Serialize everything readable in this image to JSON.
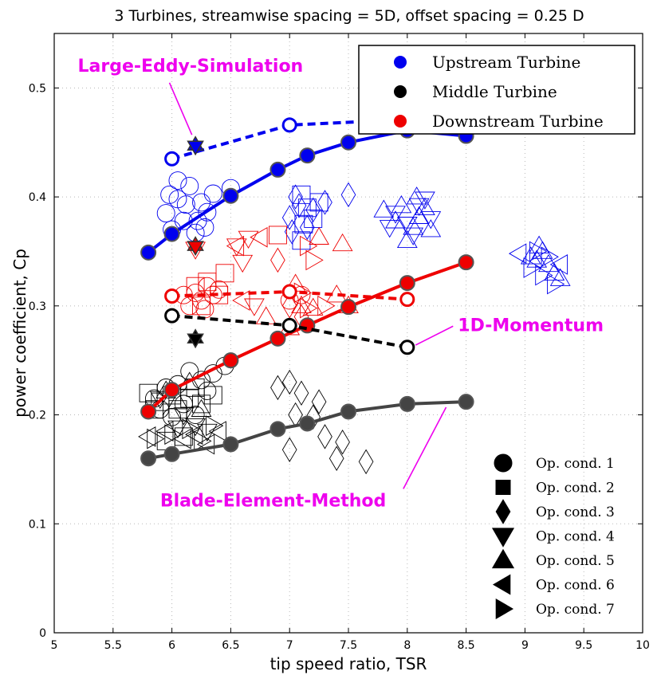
{
  "chart_data": {
    "type": "scatter",
    "title": "3 Turbines, streamwise spacing = 5D, offset spacing = 0.25 D",
    "xlabel": "tip speed ratio, TSR",
    "ylabel": "power coefficient, Cp",
    "xlim": [
      5,
      10
    ],
    "ylim": [
      0,
      0.55
    ],
    "xticks": [
      5,
      5.5,
      6,
      6.5,
      7,
      7.5,
      8,
      8.5,
      9,
      9.5,
      10
    ],
    "xtick_labels": [
      "5",
      "5.5",
      "6",
      "6.5",
      "7",
      "7.5",
      "8",
      "8.5",
      "9",
      "9.5",
      "10"
    ],
    "yticks": [
      0,
      0.1,
      0.2,
      0.3,
      0.4,
      0.5
    ],
    "ytick_labels": [
      "0",
      "0.1",
      "0.2",
      "0.3",
      "0.4",
      "0.5"
    ],
    "grid": true,
    "legend_placement": "top-right",
    "legend": [
      {
        "name": "Upstream Turbine",
        "color": "#0000ee"
      },
      {
        "name": "Middle Turbine",
        "color": "#000000"
      },
      {
        "name": "Downstream Turbine",
        "color": "#ee0000"
      }
    ],
    "op_conditions": [
      {
        "label": "Op. cond. 1",
        "marker": "circle"
      },
      {
        "label": "Op. cond. 2",
        "marker": "square"
      },
      {
        "label": "Op. cond. 3",
        "marker": "diamond"
      },
      {
        "label": "Op. cond. 4",
        "marker": "triangle-down"
      },
      {
        "label": "Op. cond. 5",
        "marker": "triangle-up"
      },
      {
        "label": "Op. cond. 6",
        "marker": "triangle-left"
      },
      {
        "label": "Op. cond. 7",
        "marker": "triangle-right"
      }
    ],
    "annotations": [
      {
        "text": "Large-Eddy-Simulation",
        "x": 5.2,
        "y": 0.515,
        "arrow_to": [
          6.17,
          0.457
        ]
      },
      {
        "text": "1D-Momentum",
        "x": 8.43,
        "y": 0.277,
        "arrow_to": [
          8.07,
          0.264
        ]
      },
      {
        "text": "Blade-Element-Method",
        "x": 5.9,
        "y": 0.116,
        "arrow_to": [
          8.33,
          0.207
        ]
      }
    ],
    "series": [
      {
        "name": "Upstream BEM",
        "color": "#0000ee",
        "line": "solid",
        "marker": "circle-filled",
        "x": [
          5.8,
          6,
          6.5,
          6.9,
          7.15,
          7.5,
          8,
          8.5
        ],
        "y": [
          0.349,
          0.366,
          0.401,
          0.425,
          0.438,
          0.45,
          0.461,
          0.456
        ]
      },
      {
        "name": "Downstream BEM",
        "color": "#ee0000",
        "line": "solid",
        "marker": "circle-filled",
        "x": [
          5.8,
          6,
          6.5,
          6.9,
          7.15,
          7.5,
          8,
          8.5
        ],
        "y": [
          0.203,
          0.223,
          0.25,
          0.27,
          0.282,
          0.299,
          0.321,
          0.34
        ]
      },
      {
        "name": "Middle BEM",
        "color": "#444444",
        "line": "solid",
        "marker": "circle-filled",
        "x": [
          5.8,
          6,
          6.5,
          6.9,
          7.15,
          7.5,
          8,
          8.5
        ],
        "y": [
          0.16,
          0.164,
          0.173,
          0.187,
          0.192,
          0.203,
          0.21,
          0.212
        ]
      },
      {
        "name": "Upstream 1D-Momentum",
        "color": "#0000ee",
        "line": "dashed",
        "marker": "circle-open",
        "x": [
          6,
          7,
          8
        ],
        "y": [
          0.435,
          0.466,
          0.471
        ]
      },
      {
        "name": "Downstream 1D-Momentum",
        "color": "#ee0000",
        "line": "dashed",
        "marker": "circle-open",
        "x": [
          6,
          7,
          8
        ],
        "y": [
          0.309,
          0.313,
          0.306
        ]
      },
      {
        "name": "Middle 1D-Momentum",
        "color": "#000000",
        "line": "dashed",
        "marker": "circle-open",
        "x": [
          6,
          7,
          8
        ],
        "y": [
          0.291,
          0.282,
          0.262
        ]
      },
      {
        "name": "Upstream LES",
        "color": "#0000ee",
        "line": "none",
        "marker": "hexagram",
        "x": [
          6.2
        ],
        "y": [
          0.447
        ]
      },
      {
        "name": "Downstream LES",
        "color": "#ee0000",
        "line": "none",
        "marker": "hexagram",
        "x": [
          6.2
        ],
        "y": [
          0.355
        ]
      },
      {
        "name": "Middle LES",
        "color": "#000000",
        "line": "none",
        "marker": "hexagram",
        "x": [
          6.2
        ],
        "y": [
          0.27
        ]
      }
    ],
    "experiments": [
      {
        "color": "#0000ee",
        "points": [
          [
            5.95,
            0.385,
            "circle"
          ],
          [
            6.05,
            0.398,
            "circle"
          ],
          [
            6.15,
            0.41,
            "circle"
          ],
          [
            6.0,
            0.37,
            "circle"
          ],
          [
            6.25,
            0.395,
            "circle"
          ],
          [
            6.1,
            0.378,
            "circle"
          ],
          [
            6.3,
            0.386,
            "circle"
          ],
          [
            6.2,
            0.367,
            "circle"
          ],
          [
            6.35,
            0.403,
            "circle"
          ],
          [
            6.05,
            0.415,
            "circle"
          ],
          [
            6.22,
            0.378,
            "circle"
          ],
          [
            5.98,
            0.402,
            "circle"
          ],
          [
            6.5,
            0.408,
            "circle"
          ],
          [
            6.28,
            0.372,
            "circle"
          ],
          [
            6.12,
            0.393,
            "circle"
          ],
          [
            7.0,
            0.381,
            "diamond"
          ],
          [
            7.08,
            0.392,
            "diamond"
          ],
          [
            7.15,
            0.372,
            "diamond"
          ],
          [
            7.05,
            0.4,
            "diamond"
          ],
          [
            7.2,
            0.388,
            "diamond"
          ],
          [
            7.3,
            0.395,
            "diamond"
          ],
          [
            7.02,
            0.368,
            "diamond"
          ],
          [
            7.5,
            0.402,
            "diamond"
          ],
          [
            7.1,
            0.402,
            "square"
          ],
          [
            7.15,
            0.39,
            "square"
          ],
          [
            7.2,
            0.38,
            "square"
          ],
          [
            7.12,
            0.375,
            "square"
          ],
          [
            7.25,
            0.395,
            "square"
          ],
          [
            7.1,
            0.36,
            "square"
          ],
          [
            7.8,
            0.388,
            "triangle-up"
          ],
          [
            7.9,
            0.378,
            "triangle-up"
          ],
          [
            8.05,
            0.372,
            "triangle-up"
          ],
          [
            8.15,
            0.39,
            "triangle-up"
          ],
          [
            8.0,
            0.36,
            "triangle-up"
          ],
          [
            8.1,
            0.382,
            "triangle-up"
          ],
          [
            8.2,
            0.37,
            "triangle-up"
          ],
          [
            7.95,
            0.392,
            "triangle-up"
          ],
          [
            8.08,
            0.4,
            "triangle-up"
          ],
          [
            7.9,
            0.385,
            "triangle-down"
          ],
          [
            8.0,
            0.375,
            "triangle-down"
          ],
          [
            8.1,
            0.392,
            "triangle-down"
          ],
          [
            8.2,
            0.38,
            "triangle-down"
          ],
          [
            8.05,
            0.365,
            "triangle-down"
          ],
          [
            8.15,
            0.398,
            "triangle-down"
          ],
          [
            7.85,
            0.372,
            "triangle-down"
          ],
          [
            9.05,
            0.345,
            "triangle-up"
          ],
          [
            9.15,
            0.35,
            "triangle-up"
          ],
          [
            9.2,
            0.338,
            "triangle-up"
          ],
          [
            9.25,
            0.33,
            "triangle-up"
          ],
          [
            9.1,
            0.342,
            "triangle-up"
          ],
          [
            9.3,
            0.325,
            "triangle-up"
          ],
          [
            9.12,
            0.355,
            "triangle-up"
          ],
          [
            9.05,
            0.335,
            "triangle-right"
          ],
          [
            9.15,
            0.328,
            "triangle-right"
          ],
          [
            9.2,
            0.345,
            "triangle-right"
          ],
          [
            9.25,
            0.32,
            "triangle-right"
          ],
          [
            9.1,
            0.35,
            "triangle-right"
          ],
          [
            8.95,
            0.348,
            "triangle-left"
          ],
          [
            9.3,
            0.338,
            "triangle-left"
          ]
        ]
      },
      {
        "color": "#ee0000",
        "points": [
          [
            6.2,
            0.312,
            "circle"
          ],
          [
            6.3,
            0.318,
            "circle"
          ],
          [
            6.15,
            0.3,
            "circle"
          ],
          [
            6.25,
            0.305,
            "circle"
          ],
          [
            6.35,
            0.31,
            "circle"
          ],
          [
            6.1,
            0.31,
            "circle"
          ],
          [
            6.28,
            0.297,
            "circle"
          ],
          [
            6.4,
            0.315,
            "circle"
          ],
          [
            7.0,
            0.305,
            "circle"
          ],
          [
            7.1,
            0.31,
            "circle"
          ],
          [
            6.3,
            0.322,
            "square"
          ],
          [
            6.4,
            0.31,
            "square"
          ],
          [
            6.2,
            0.318,
            "square"
          ],
          [
            6.25,
            0.3,
            "square"
          ],
          [
            6.9,
            0.365,
            "square"
          ],
          [
            6.45,
            0.33,
            "square"
          ],
          [
            6.55,
            0.355,
            "triangle-down"
          ],
          [
            6.65,
            0.362,
            "triangle-down"
          ],
          [
            6.7,
            0.3,
            "triangle-down"
          ],
          [
            6.2,
            0.352,
            "triangle-down"
          ],
          [
            6.6,
            0.34,
            "triangle-down"
          ],
          [
            6.75,
            0.363,
            "triangle-left"
          ],
          [
            6.55,
            0.355,
            "triangle-left"
          ],
          [
            6.6,
            0.305,
            "triangle-left"
          ],
          [
            6.8,
            0.29,
            "triangle-up"
          ],
          [
            7.0,
            0.28,
            "triangle-up"
          ],
          [
            7.1,
            0.3,
            "triangle-up"
          ],
          [
            7.45,
            0.357,
            "triangle-up"
          ],
          [
            7.2,
            0.298,
            "triangle-up"
          ],
          [
            7.25,
            0.363,
            "triangle-up"
          ],
          [
            7.5,
            0.3,
            "triangle-up"
          ],
          [
            7.4,
            0.31,
            "triangle-up"
          ],
          [
            7.05,
            0.32,
            "triangle-up"
          ],
          [
            6.9,
            0.342,
            "diamond"
          ],
          [
            7.0,
            0.3,
            "diamond"
          ],
          [
            7.1,
            0.29,
            "diamond"
          ],
          [
            7.15,
            0.355,
            "triangle-right"
          ],
          [
            7.2,
            0.342,
            "triangle-right"
          ],
          [
            7.1,
            0.312,
            "triangle-right"
          ],
          [
            7.3,
            0.3,
            "triangle-right"
          ],
          [
            7.15,
            0.298,
            "triangle-right"
          ]
        ]
      },
      {
        "color": "#000000",
        "points": [
          [
            5.85,
            0.215,
            "circle"
          ],
          [
            5.95,
            0.225,
            "circle"
          ],
          [
            6.05,
            0.228,
            "circle"
          ],
          [
            6.15,
            0.24,
            "circle"
          ],
          [
            6.25,
            0.232,
            "circle"
          ],
          [
            6.35,
            0.238,
            "circle"
          ],
          [
            6.45,
            0.245,
            "circle"
          ],
          [
            6.1,
            0.21,
            "circle"
          ],
          [
            6.2,
            0.2,
            "circle"
          ],
          [
            6.3,
            0.222,
            "circle"
          ],
          [
            6.0,
            0.198,
            "circle"
          ],
          [
            5.9,
            0.205,
            "circle"
          ],
          [
            5.8,
            0.22,
            "square"
          ],
          [
            5.9,
            0.212,
            "square"
          ],
          [
            6.0,
            0.218,
            "square"
          ],
          [
            6.05,
            0.205,
            "square"
          ],
          [
            6.15,
            0.215,
            "square"
          ],
          [
            6.25,
            0.21,
            "square"
          ],
          [
            6.35,
            0.218,
            "square"
          ],
          [
            5.85,
            0.205,
            "square"
          ],
          [
            6.2,
            0.225,
            "square"
          ],
          [
            6.1,
            0.18,
            "square"
          ],
          [
            5.95,
            0.176,
            "square"
          ],
          [
            6.9,
            0.225,
            "diamond"
          ],
          [
            7.0,
            0.23,
            "diamond"
          ],
          [
            7.1,
            0.22,
            "diamond"
          ],
          [
            7.25,
            0.212,
            "diamond"
          ],
          [
            7.05,
            0.2,
            "diamond"
          ],
          [
            7.2,
            0.198,
            "diamond"
          ],
          [
            7.0,
            0.168,
            "diamond"
          ],
          [
            7.45,
            0.175,
            "diamond"
          ],
          [
            7.3,
            0.18,
            "diamond"
          ],
          [
            7.4,
            0.16,
            "diamond"
          ],
          [
            7.65,
            0.157,
            "diamond"
          ],
          [
            5.9,
            0.215,
            "triangle-down"
          ],
          [
            6.1,
            0.2,
            "triangle-down"
          ],
          [
            6.2,
            0.19,
            "triangle-down"
          ],
          [
            6.3,
            0.185,
            "triangle-down"
          ],
          [
            6.05,
            0.188,
            "triangle-down"
          ],
          [
            5.95,
            0.222,
            "triangle-up"
          ],
          [
            6.05,
            0.212,
            "triangle-up"
          ],
          [
            6.25,
            0.205,
            "triangle-up"
          ],
          [
            6.15,
            0.23,
            "triangle-up"
          ],
          [
            5.8,
            0.18,
            "triangle-left"
          ],
          [
            5.95,
            0.185,
            "triangle-left"
          ],
          [
            6.1,
            0.178,
            "triangle-left"
          ],
          [
            6.2,
            0.182,
            "triangle-left"
          ],
          [
            6.3,
            0.173,
            "triangle-left"
          ],
          [
            6.4,
            0.185,
            "triangle-left"
          ],
          [
            5.85,
            0.178,
            "triangle-right"
          ],
          [
            6.0,
            0.182,
            "triangle-right"
          ],
          [
            6.15,
            0.187,
            "triangle-right"
          ],
          [
            6.25,
            0.176,
            "triangle-right"
          ],
          [
            6.35,
            0.19,
            "triangle-right"
          ]
        ]
      }
    ]
  }
}
